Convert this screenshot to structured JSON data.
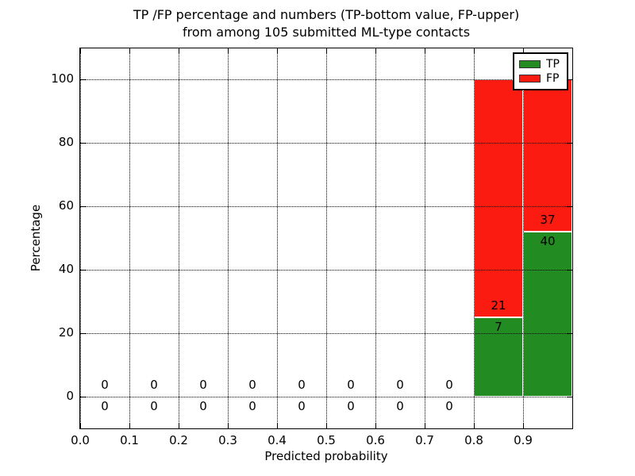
{
  "title": {
    "line1": "TP /FP percentage and numbers (TP-bottom value, FP-upper)",
    "line2": "from among 105 submitted ML-type contacts"
  },
  "chart_data": {
    "type": "bar",
    "stacked": true,
    "title": "TP /FP percentage and numbers (TP-bottom value, FP-upper) from among 105 submitted ML-type contacts",
    "xlabel": "Predicted probability",
    "ylabel": "Percentage",
    "xlim": [
      0.0,
      1.0
    ],
    "ylim": [
      -10,
      110
    ],
    "xtick_values": [
      0.0,
      0.1,
      0.2,
      0.3,
      0.4,
      0.5,
      0.6,
      0.7,
      0.8,
      0.9
    ],
    "xtick_labels": [
      "0.0",
      "0.1",
      "0.2",
      "0.3",
      "0.4",
      "0.5",
      "0.6",
      "0.7",
      "0.8",
      "0.9"
    ],
    "ytick_values": [
      0,
      20,
      40,
      60,
      80,
      100
    ],
    "ytick_labels": [
      "0",
      "20",
      "40",
      "60",
      "80",
      "100"
    ],
    "grid": "dotted",
    "units": "percent stacked to 100 for non-empty bins",
    "bins": [
      {
        "range": [
          0.0,
          0.1
        ],
        "tp": 0,
        "fp": 0,
        "tp_pct": 0,
        "fp_pct": 0
      },
      {
        "range": [
          0.1,
          0.2
        ],
        "tp": 0,
        "fp": 0,
        "tp_pct": 0,
        "fp_pct": 0
      },
      {
        "range": [
          0.2,
          0.3
        ],
        "tp": 0,
        "fp": 0,
        "tp_pct": 0,
        "fp_pct": 0
      },
      {
        "range": [
          0.3,
          0.4
        ],
        "tp": 0,
        "fp": 0,
        "tp_pct": 0,
        "fp_pct": 0
      },
      {
        "range": [
          0.4,
          0.5
        ],
        "tp": 0,
        "fp": 0,
        "tp_pct": 0,
        "fp_pct": 0
      },
      {
        "range": [
          0.5,
          0.6
        ],
        "tp": 0,
        "fp": 0,
        "tp_pct": 0,
        "fp_pct": 0
      },
      {
        "range": [
          0.6,
          0.7
        ],
        "tp": 0,
        "fp": 0,
        "tp_pct": 0,
        "fp_pct": 0
      },
      {
        "range": [
          0.7,
          0.8
        ],
        "tp": 0,
        "fp": 0,
        "tp_pct": 0,
        "fp_pct": 0
      },
      {
        "range": [
          0.8,
          0.9
        ],
        "tp": 7,
        "fp": 21,
        "tp_pct": 25.0,
        "fp_pct": 75.0
      },
      {
        "range": [
          0.9,
          1.0
        ],
        "tp": 40,
        "fp": 37,
        "tp_pct": 51.9,
        "fp_pct": 48.1
      }
    ],
    "colors": {
      "tp": "#228b22",
      "fp": "#fb1b10",
      "bar_edge": "#ffffff",
      "grid": "#000000"
    },
    "legend": {
      "position": "upper right",
      "entries": [
        {
          "label": "TP",
          "color": "#228b22"
        },
        {
          "label": "FP",
          "color": "#fb1b10"
        }
      ]
    }
  }
}
